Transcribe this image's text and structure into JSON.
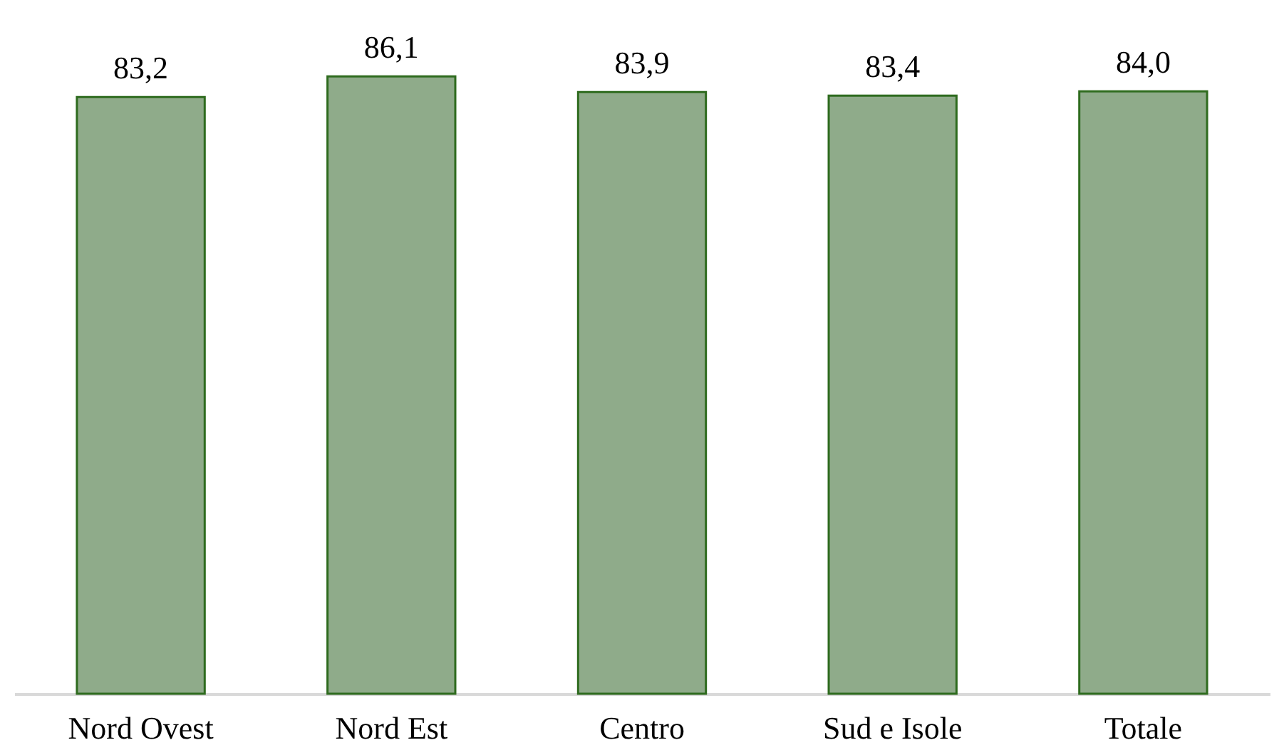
{
  "chart_data": {
    "type": "bar",
    "categories": [
      "Nord Ovest",
      "Nord Est",
      "Centro",
      "Sud e Isole",
      "Totale"
    ],
    "values": [
      83.2,
      86.1,
      83.9,
      83.4,
      84.0
    ],
    "value_labels": [
      "83,2",
      "86,1",
      "83,9",
      "83,4",
      "84,0"
    ],
    "color": "#8fab8a",
    "grid": false
  }
}
